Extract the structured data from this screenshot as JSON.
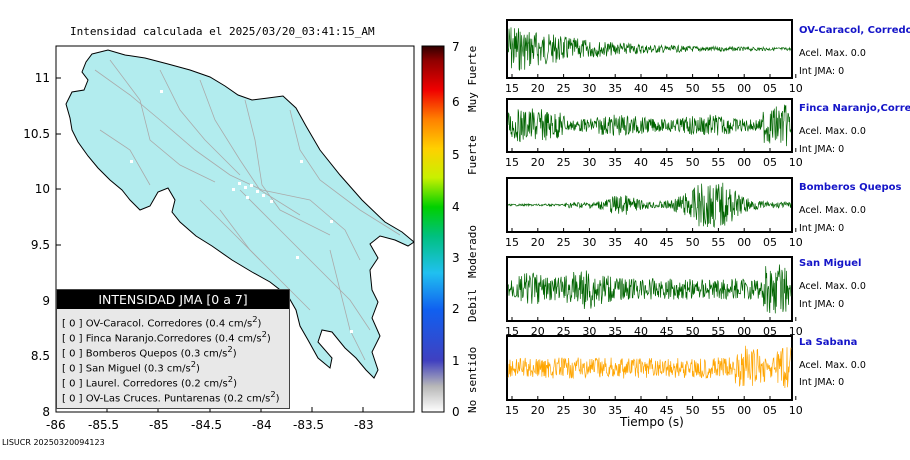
{
  "map": {
    "title": "Intensidad calculada el 2025/03/20_03:41:15_AM",
    "yticks": [
      "11",
      "10.5",
      "10",
      "9.5",
      "9",
      "8.5",
      "8"
    ],
    "xticks": [
      "-86",
      "-85.5",
      "-85",
      "-84.5",
      "-84",
      "-83.5",
      "-83"
    ],
    "land_color": "#b2ecee",
    "road_color": "#aaaaaa"
  },
  "colorbar": {
    "ticks": [
      "7",
      "6",
      "5",
      "4",
      "3",
      "2",
      "1",
      "0"
    ],
    "labels": [
      "Muy Fuerte",
      "Fuerte",
      "Moderado",
      "Debil",
      "No sentido"
    ]
  },
  "legend": {
    "title": "INTENSIDAD JMA [0 a 7]",
    "rows": [
      {
        "level": "[ 0 ]",
        "station": "OV-Caracol. Corredores",
        "value": "(0.4 cm/s",
        "sup": "2",
        "close": ")"
      },
      {
        "level": "[ 0 ]",
        "station": "Finca Naranjo.Corredores",
        "value": "(0.4 cm/s",
        "sup": "2",
        "close": ")"
      },
      {
        "level": "[ 0 ]",
        "station": "Bomberos Quepos",
        "value": "(0.3 cm/s",
        "sup": "2",
        "close": ")"
      },
      {
        "level": "[ 0 ]",
        "station": "San Miguel",
        "value": "(0.3 cm/s",
        "sup": "2",
        "close": ")"
      },
      {
        "level": "[ 0 ]",
        "station": "Laurel. Corredores",
        "value": "(0.2 cm/s",
        "sup": "2",
        "close": ")"
      },
      {
        "level": "[ 0 ]",
        "station": "OV-Las Cruces. Puntarenas",
        "value": "(0.2 cm/s",
        "sup": "2",
        "close": ")"
      }
    ]
  },
  "traces": [
    {
      "name": "OV-Caracol, Corredore",
      "acel": "Acel. Max. 0.0",
      "jma": "Int JMA: 0",
      "color": "#006400"
    },
    {
      "name": "Finca Naranjo,Corredor",
      "acel": "Acel. Max. 0.0",
      "jma": "Int JMA: 0",
      "color": "#006400"
    },
    {
      "name": "Bomberos Quepos",
      "acel": "Acel. Max. 0.0",
      "jma": "Int JMA: 0",
      "color": "#006400"
    },
    {
      "name": "San Miguel",
      "acel": "Acel. Max. 0.0",
      "jma": "Int JMA: 0",
      "color": "#006400"
    },
    {
      "name": "La Sabana",
      "acel": "Acel. Max. 0.0",
      "jma": "Int JMA: 0",
      "color": "#ffa500"
    }
  ],
  "trace_xticks": [
    "15",
    "20",
    "25",
    "30",
    "35",
    "40",
    "45",
    "50",
    "55",
    "00",
    "05",
    "10"
  ],
  "xlabel": "Tiempo (s)",
  "footer": "LISUCR 20250320094123",
  "chart_data": [
    {
      "type": "heatmap",
      "title": "Intensidad calculada el 2025/03/20_03:41:15_AM",
      "xlim": [
        -86,
        -82.6
      ],
      "ylim": [
        8,
        11.3
      ],
      "colorbar_range": [
        0,
        7
      ],
      "series": [
        {
          "name": "OV-Caracol. Corredores",
          "value": 0.4,
          "jma": 0
        },
        {
          "name": "Finca Naranjo.Corredores",
          "value": 0.4,
          "jma": 0
        },
        {
          "name": "Bomberos Quepos",
          "value": 0.3,
          "jma": 0
        },
        {
          "name": "San Miguel",
          "value": 0.3,
          "jma": 0
        },
        {
          "name": "Laurel. Corredores",
          "value": 0.2,
          "jma": 0
        },
        {
          "name": "OV-Las Cruces. Puntarenas",
          "value": 0.2,
          "jma": 0
        }
      ]
    },
    {
      "type": "line",
      "xlabel": "Tiempo (s)",
      "categories": [
        "15",
        "20",
        "25",
        "30",
        "35",
        "40",
        "45",
        "50",
        "55",
        "00",
        "05",
        "10"
      ],
      "series": [
        {
          "name": "OV-Caracol, Corredore",
          "acel_max": 0.0,
          "int_jma": 0
        },
        {
          "name": "Finca Naranjo,Corredor",
          "acel_max": 0.0,
          "int_jma": 0
        },
        {
          "name": "Bomberos Quepos",
          "acel_max": 0.0,
          "int_jma": 0
        },
        {
          "name": "San Miguel",
          "acel_max": 0.0,
          "int_jma": 0
        },
        {
          "name": "La Sabana",
          "acel_max": 0.0,
          "int_jma": 0
        }
      ]
    }
  ]
}
